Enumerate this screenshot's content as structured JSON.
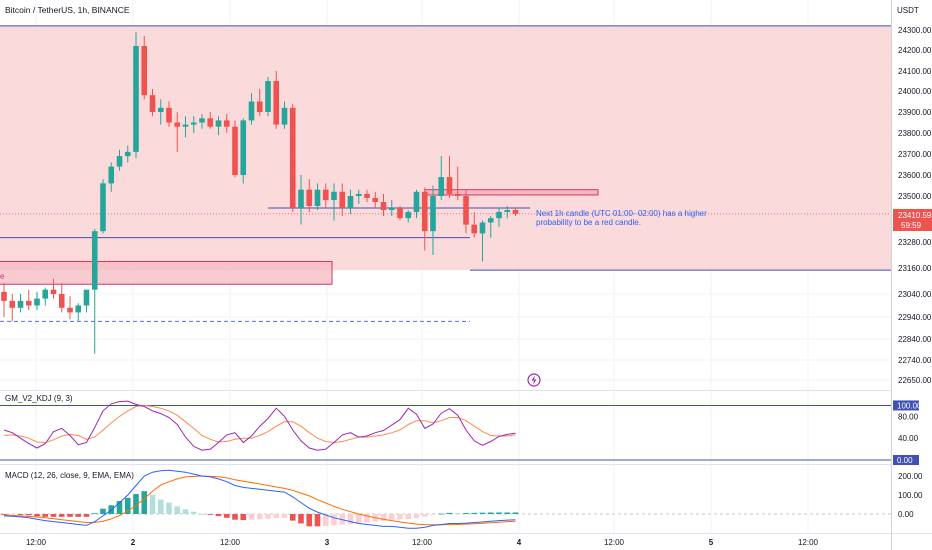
{
  "header": {
    "symbol_title": "Bitcoin / TetherUS, 1h, BINANCE",
    "currency": "USDT"
  },
  "colors": {
    "up": "#26a69a",
    "down": "#ef5350",
    "zone_fill": "#f9d3d5",
    "zone_border": "#d6336c",
    "line_blue": "#3f51b5",
    "stoch_k": "#9c27b0",
    "stoch_d": "#ff8a50",
    "macd_line": "#2962ff",
    "signal_line": "#ff6d00"
  },
  "annotation": {
    "note_line1": "Next 1h candle (UTC 01:00- 02:00) has a higher",
    "note_line2": "probability to be a red candle.",
    "left_box_text": "e"
  },
  "price_badges": {
    "last": "23410.59",
    "countdown": "59:59"
  },
  "indicator_labels": {
    "kdj": "GM_V2_KDJ (9, 3)",
    "macd": "MACD (12, 26, close, 9, EMA, EMA)"
  },
  "chart_data": {
    "type": "candlestick",
    "timeframe": "1h",
    "y_axis": {
      "unit": "USDT",
      "ylim": [
        22560,
        24400
      ],
      "ticks": [
        24300,
        24200,
        24100,
        24000,
        23900,
        23800,
        23700,
        23600,
        23500,
        23400,
        23280,
        23160,
        23040,
        22940,
        22840,
        22740,
        22650
      ],
      "tick_labels": [
        "24300.00",
        "24200.00",
        "24100.00",
        "24000.00",
        "23900.00",
        "23800.00",
        "23700.00",
        "23600.00",
        "23500.00",
        "23410.59",
        "23280.00",
        "23160.00",
        "23040.00",
        "22940.00",
        "22840.00",
        "22740.00",
        "22650.00"
      ]
    },
    "x_axis": {
      "tick_labels": [
        "12:00",
        "2",
        "12:00",
        "3",
        "12:00",
        "4",
        "12:00",
        "5",
        "12:00"
      ],
      "bold": [
        "2",
        "3",
        "4",
        "5"
      ]
    },
    "zones": [
      {
        "name": "resistance zone",
        "low": 23150,
        "high": 24320
      },
      {
        "name": "left box",
        "low": 23085,
        "high": 23190
      },
      {
        "name": "small box",
        "low": 23505,
        "high": 23530
      }
    ],
    "hlines": [
      {
        "name": "blue line",
        "price": 23300
      },
      {
        "name": "blue line 2",
        "price": 23440
      },
      {
        "name": "dashed support",
        "price": 22920
      }
    ],
    "candles": [
      {
        "o": 23050,
        "h": 23090,
        "l": 22940,
        "c": 23010
      },
      {
        "o": 23010,
        "h": 23040,
        "l": 22920,
        "c": 22980
      },
      {
        "o": 22980,
        "h": 23040,
        "l": 22960,
        "c": 23010
      },
      {
        "o": 23010,
        "h": 23060,
        "l": 22970,
        "c": 22990
      },
      {
        "o": 22990,
        "h": 23050,
        "l": 22970,
        "c": 23020
      },
      {
        "o": 23020,
        "h": 23070,
        "l": 22990,
        "c": 23060
      },
      {
        "o": 23060,
        "h": 23110,
        "l": 23020,
        "c": 23040
      },
      {
        "o": 23040,
        "h": 23090,
        "l": 22960,
        "c": 22980
      },
      {
        "o": 22980,
        "h": 23030,
        "l": 22930,
        "c": 22960
      },
      {
        "o": 22960,
        "h": 23000,
        "l": 22920,
        "c": 22990
      },
      {
        "o": 22990,
        "h": 23050,
        "l": 22960,
        "c": 23060
      },
      {
        "o": 23060,
        "h": 23340,
        "l": 22770,
        "c": 23330
      },
      {
        "o": 23330,
        "h": 23580,
        "l": 23320,
        "c": 23560
      },
      {
        "o": 23560,
        "h": 23660,
        "l": 23520,
        "c": 23640
      },
      {
        "o": 23640,
        "h": 23720,
        "l": 23620,
        "c": 23690
      },
      {
        "o": 23690,
        "h": 23740,
        "l": 23660,
        "c": 23710
      },
      {
        "o": 23710,
        "h": 24290,
        "l": 23680,
        "c": 24220
      },
      {
        "o": 24220,
        "h": 24270,
        "l": 23960,
        "c": 23980
      },
      {
        "o": 23980,
        "h": 24010,
        "l": 23880,
        "c": 23900
      },
      {
        "o": 23900,
        "h": 23960,
        "l": 23840,
        "c": 23920
      },
      {
        "o": 23920,
        "h": 23950,
        "l": 23830,
        "c": 23850
      },
      {
        "o": 23850,
        "h": 23900,
        "l": 23710,
        "c": 23830
      },
      {
        "o": 23830,
        "h": 23880,
        "l": 23780,
        "c": 23840
      },
      {
        "o": 23840,
        "h": 23880,
        "l": 23800,
        "c": 23850
      },
      {
        "o": 23850,
        "h": 23890,
        "l": 23820,
        "c": 23870
      },
      {
        "o": 23870,
        "h": 23900,
        "l": 23820,
        "c": 23830
      },
      {
        "o": 23830,
        "h": 23880,
        "l": 23790,
        "c": 23860
      },
      {
        "o": 23860,
        "h": 23890,
        "l": 23800,
        "c": 23830
      },
      {
        "o": 23830,
        "h": 23860,
        "l": 23590,
        "c": 23600
      },
      {
        "o": 23600,
        "h": 23870,
        "l": 23560,
        "c": 23860
      },
      {
        "o": 23860,
        "h": 23990,
        "l": 23840,
        "c": 23950
      },
      {
        "o": 23950,
        "h": 24010,
        "l": 23880,
        "c": 23900
      },
      {
        "o": 23900,
        "h": 24070,
        "l": 23880,
        "c": 24050
      },
      {
        "o": 24050,
        "h": 24100,
        "l": 23820,
        "c": 23840
      },
      {
        "o": 23840,
        "h": 23950,
        "l": 23820,
        "c": 23920
      },
      {
        "o": 23920,
        "h": 23940,
        "l": 23420,
        "c": 23440
      },
      {
        "o": 23440,
        "h": 23600,
        "l": 23360,
        "c": 23530
      },
      {
        "o": 23530,
        "h": 23580,
        "l": 23420,
        "c": 23450
      },
      {
        "o": 23450,
        "h": 23560,
        "l": 23430,
        "c": 23530
      },
      {
        "o": 23530,
        "h": 23560,
        "l": 23440,
        "c": 23480
      },
      {
        "o": 23480,
        "h": 23560,
        "l": 23380,
        "c": 23520
      },
      {
        "o": 23520,
        "h": 23560,
        "l": 23400,
        "c": 23440
      },
      {
        "o": 23440,
        "h": 23530,
        "l": 23410,
        "c": 23500
      },
      {
        "o": 23500,
        "h": 23530,
        "l": 23460,
        "c": 23510
      },
      {
        "o": 23510,
        "h": 23530,
        "l": 23470,
        "c": 23490
      },
      {
        "o": 23490,
        "h": 23520,
        "l": 23440,
        "c": 23470
      },
      {
        "o": 23470,
        "h": 23510,
        "l": 23400,
        "c": 23430
      },
      {
        "o": 23430,
        "h": 23480,
        "l": 23400,
        "c": 23440
      },
      {
        "o": 23440,
        "h": 23450,
        "l": 23380,
        "c": 23390
      },
      {
        "o": 23390,
        "h": 23430,
        "l": 23370,
        "c": 23420
      },
      {
        "o": 23420,
        "h": 23530,
        "l": 23390,
        "c": 23520
      },
      {
        "o": 23520,
        "h": 23540,
        "l": 23240,
        "c": 23330
      },
      {
        "o": 23330,
        "h": 23550,
        "l": 23220,
        "c": 23500
      },
      {
        "o": 23500,
        "h": 23690,
        "l": 23480,
        "c": 23590
      },
      {
        "o": 23590,
        "h": 23690,
        "l": 23490,
        "c": 23510
      },
      {
        "o": 23510,
        "h": 23640,
        "l": 23480,
        "c": 23500
      },
      {
        "o": 23500,
        "h": 23530,
        "l": 23320,
        "c": 23360
      },
      {
        "o": 23360,
        "h": 23420,
        "l": 23300,
        "c": 23320
      },
      {
        "o": 23320,
        "h": 23380,
        "l": 23190,
        "c": 23370
      },
      {
        "o": 23370,
        "h": 23400,
        "l": 23300,
        "c": 23390
      },
      {
        "o": 23390,
        "h": 23440,
        "l": 23350,
        "c": 23420
      },
      {
        "o": 23420,
        "h": 23450,
        "l": 23390,
        "c": 23430
      },
      {
        "o": 23430,
        "h": 23440,
        "l": 23400,
        "c": 23411
      }
    ],
    "kdj": {
      "ylim": [
        0,
        110
      ],
      "ticks": [
        100,
        80,
        40,
        0
      ],
      "tick_labels": [
        "100.00",
        "80.00",
        "40.00",
        "0.00"
      ],
      "k": [
        55,
        50,
        40,
        30,
        22,
        30,
        52,
        58,
        45,
        28,
        32,
        60,
        90,
        103,
        107,
        108,
        102,
        98,
        90,
        85,
        78,
        65,
        42,
        25,
        18,
        20,
        32,
        46,
        50,
        32,
        44,
        62,
        76,
        95,
        80,
        55,
        35,
        22,
        18,
        20,
        32,
        46,
        50,
        42,
        44,
        50,
        54,
        64,
        74,
        95,
        84,
        58,
        66,
        86,
        94,
        82,
        55,
        35,
        27,
        34,
        43,
        47,
        49
      ],
      "d": [
        45,
        46,
        44,
        40,
        33,
        32,
        37,
        44,
        47,
        45,
        38,
        42,
        55,
        68,
        80,
        90,
        98,
        100,
        98,
        95,
        90,
        82,
        70,
        58,
        45,
        38,
        33,
        34,
        38,
        40,
        40,
        45,
        52,
        62,
        70,
        70,
        62,
        50,
        40,
        34,
        32,
        34,
        38,
        42,
        42,
        44,
        46,
        50,
        55,
        65,
        72,
        72,
        68,
        72,
        78,
        78,
        72,
        62,
        52,
        45,
        44,
        44,
        46
      ]
    },
    "macd": {
      "ylim": [
        -80,
        280
      ],
      "ticks": [
        200,
        100,
        0
      ],
      "tick_labels": [
        "200.00",
        "100.00",
        "0.00"
      ],
      "macd": [
        -10,
        -12,
        -15,
        -20,
        -28,
        -35,
        -40,
        -45,
        -50,
        -55,
        -60,
        -40,
        -10,
        20,
        60,
        100,
        150,
        200,
        220,
        228,
        230,
        225,
        220,
        210,
        200,
        195,
        185,
        170,
        150,
        140,
        135,
        130,
        125,
        120,
        115,
        90,
        60,
        30,
        10,
        -5,
        -20,
        -30,
        -40,
        -50,
        -55,
        -60,
        -65,
        -65,
        -70,
        -75,
        -75,
        -70,
        -60,
        -55,
        -50,
        -50,
        -48,
        -45,
        -42,
        -38,
        -35,
        -32,
        -30
      ],
      "signal": [
        -5,
        -8,
        -10,
        -13,
        -16,
        -20,
        -25,
        -30,
        -35,
        -40,
        -45,
        -44,
        -38,
        -26,
        -8,
        15,
        45,
        80,
        120,
        152,
        170,
        185,
        195,
        198,
        200,
        198,
        196,
        190,
        180,
        172,
        165,
        158,
        150,
        142,
        135,
        125,
        110,
        95,
        75,
        58,
        40,
        25,
        12,
        0,
        -10,
        -20,
        -28,
        -35,
        -42,
        -48,
        -53,
        -56,
        -57,
        -57,
        -56,
        -55,
        -53,
        -51,
        -49,
        -46,
        -43,
        -40,
        -38
      ]
    }
  }
}
